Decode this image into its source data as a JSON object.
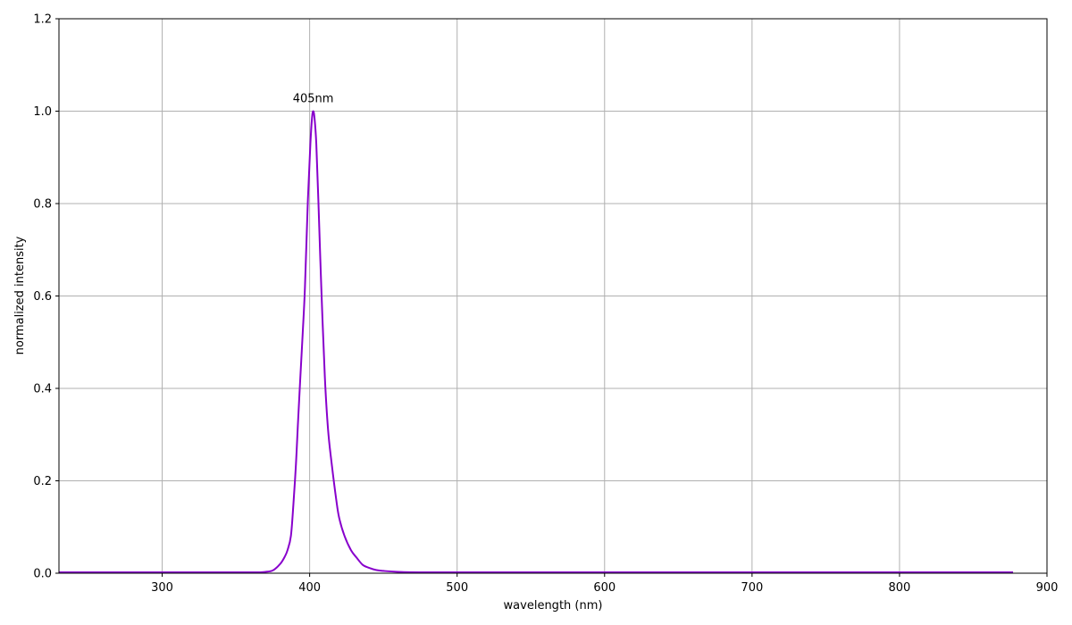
{
  "chart_data": {
    "type": "line",
    "title": "",
    "xlabel": "wavelength (nm)",
    "ylabel": "normalized intensity",
    "xlim": [
      230,
      900
    ],
    "ylim": [
      0,
      1.2
    ],
    "xticks": [
      300,
      400,
      500,
      600,
      700,
      800,
      900
    ],
    "yticks": [
      "0.0",
      "0.2",
      "0.4",
      "0.6",
      "0.8",
      "1.0",
      "1.2"
    ],
    "grid": true,
    "line_color": "#8800cc",
    "annotation": {
      "text": "405nm",
      "x": 402.4,
      "y": 1.0
    },
    "series": [
      {
        "x": [
          230,
          300,
          350,
          365,
          370,
          375,
          380,
          383,
          385,
          387.3,
          389,
          390.7,
          392,
          393.7,
          395.3,
          396.8,
          398.8,
          400.5,
          401.6,
          402.4,
          403.3,
          404.5,
          405.9,
          407.9,
          410.3,
          412.5,
          415.0,
          418,
          420,
          423.6,
          428,
          432,
          436,
          440,
          445,
          450,
          460,
          480,
          550,
          700,
          877
        ],
        "y": [
          0.002,
          0.002,
          0.002,
          0.002,
          0.003,
          0.006,
          0.02,
          0.035,
          0.05,
          0.081,
          0.15,
          0.2355,
          0.32,
          0.425,
          0.52,
          0.618,
          0.808,
          0.93,
          0.985,
          1.0,
          0.985,
          0.93,
          0.808,
          0.618,
          0.425,
          0.31,
          0.2355,
          0.16,
          0.12,
          0.081,
          0.05,
          0.033,
          0.018,
          0.012,
          0.007,
          0.005,
          0.003,
          0.002,
          0.002,
          0.002,
          0.002
        ]
      }
    ]
  }
}
